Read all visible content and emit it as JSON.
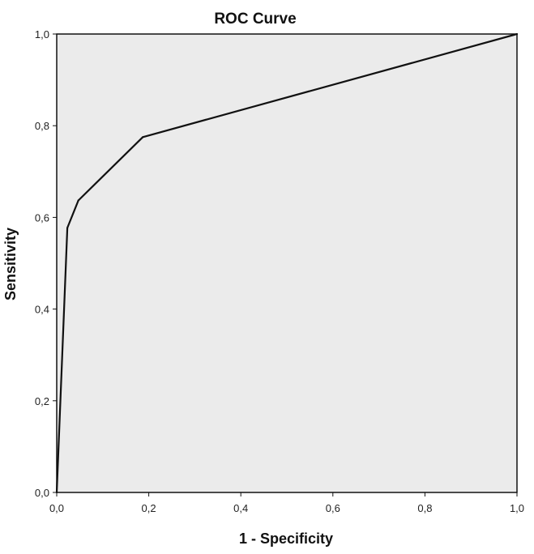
{
  "chart_data": {
    "type": "line",
    "title": "ROC Curve",
    "xlabel": "1 - Specificity",
    "ylabel": "Sensitivity",
    "xlim": [
      0,
      1
    ],
    "ylim": [
      0,
      1
    ],
    "xticks": [
      "0,0",
      "0,2",
      "0,4",
      "0,6",
      "0,8",
      "1,0"
    ],
    "yticks": [
      "0,0",
      "0,2",
      "0,4",
      "0,6",
      "0,8",
      "1,0"
    ],
    "grid": false,
    "series": [
      {
        "x": [
          0.0,
          0.023,
          0.047,
          0.187,
          1.0
        ],
        "y": [
          0.0,
          0.577,
          0.637,
          0.775,
          1.0
        ]
      }
    ],
    "colors": {
      "plot_bg": "#ebebeb",
      "line": "#111111",
      "frame": "#111111"
    }
  }
}
